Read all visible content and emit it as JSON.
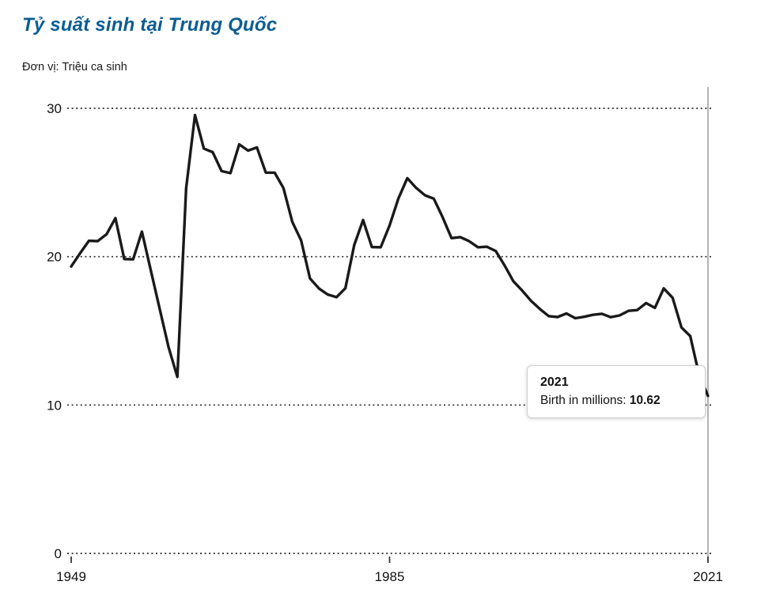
{
  "header": {
    "title": "Tỷ suất sinh tại Trung Quốc",
    "subtitle": "Đơn vị: Triệu ca sinh"
  },
  "tooltip": {
    "year": "2021",
    "label": "Birth in millions: ",
    "value": "10.62"
  },
  "colors": {
    "title": "#0c5d92",
    "line": "#1a1a1a",
    "grid": "#2b2b2b",
    "edge_line": "#9b9b9b",
    "axis_text": "#111111"
  },
  "chart_data": {
    "type": "line",
    "title": "Tỷ suất sinh tại Trung Quốc",
    "subtitle": "Đơn vị: Triệu ca sinh",
    "series_name": "Birth in millions",
    "x": [
      1949,
      1950,
      1951,
      1952,
      1953,
      1954,
      1955,
      1956,
      1957,
      1958,
      1959,
      1960,
      1961,
      1962,
      1963,
      1964,
      1965,
      1966,
      1967,
      1968,
      1969,
      1970,
      1971,
      1972,
      1973,
      1974,
      1975,
      1976,
      1977,
      1978,
      1979,
      1980,
      1981,
      1982,
      1983,
      1984,
      1985,
      1986,
      1987,
      1988,
      1989,
      1990,
      1991,
      1992,
      1993,
      1994,
      1995,
      1996,
      1997,
      1998,
      1999,
      2000,
      2001,
      2002,
      2003,
      2004,
      2005,
      2006,
      2007,
      2008,
      2009,
      2010,
      2011,
      2012,
      2013,
      2014,
      2015,
      2016,
      2017,
      2018,
      2019,
      2020,
      2021
    ],
    "values": [
      19.34,
      20.23,
      21.07,
      21.05,
      21.51,
      22.6,
      19.84,
      19.82,
      21.69,
      19.09,
      16.5,
      13.92,
      11.9,
      24.6,
      29.54,
      27.29,
      27.04,
      25.77,
      25.63,
      27.57,
      27.15,
      27.36,
      25.67,
      25.66,
      24.63,
      22.35,
      21.09,
      18.53,
      17.86,
      17.45,
      17.27,
      17.87,
      20.78,
      22.47,
      20.65,
      20.63,
      22.11,
      23.93,
      25.29,
      24.64,
      24.14,
      23.91,
      22.65,
      21.25,
      21.32,
      21.04,
      20.63,
      20.67,
      20.38,
      19.42,
      18.34,
      17.71,
      17.02,
      16.47,
      15.99,
      15.93,
      16.17,
      15.85,
      15.95,
      16.08,
      16.15,
      15.92,
      16.04,
      16.35,
      16.4,
      16.87,
      16.55,
      17.86,
      17.23,
      15.23,
      14.65,
      12.02,
      10.62
    ],
    "xlim": [
      1949,
      2021
    ],
    "ylim": [
      0,
      30
    ],
    "yticks": [
      30,
      20,
      10,
      0
    ],
    "xticks": [
      1949,
      1985,
      2021
    ],
    "grid": "dotted-horizontal",
    "legend": "none",
    "annotation": {
      "year": 2021,
      "text": "Birth in millions: 10.62"
    }
  }
}
